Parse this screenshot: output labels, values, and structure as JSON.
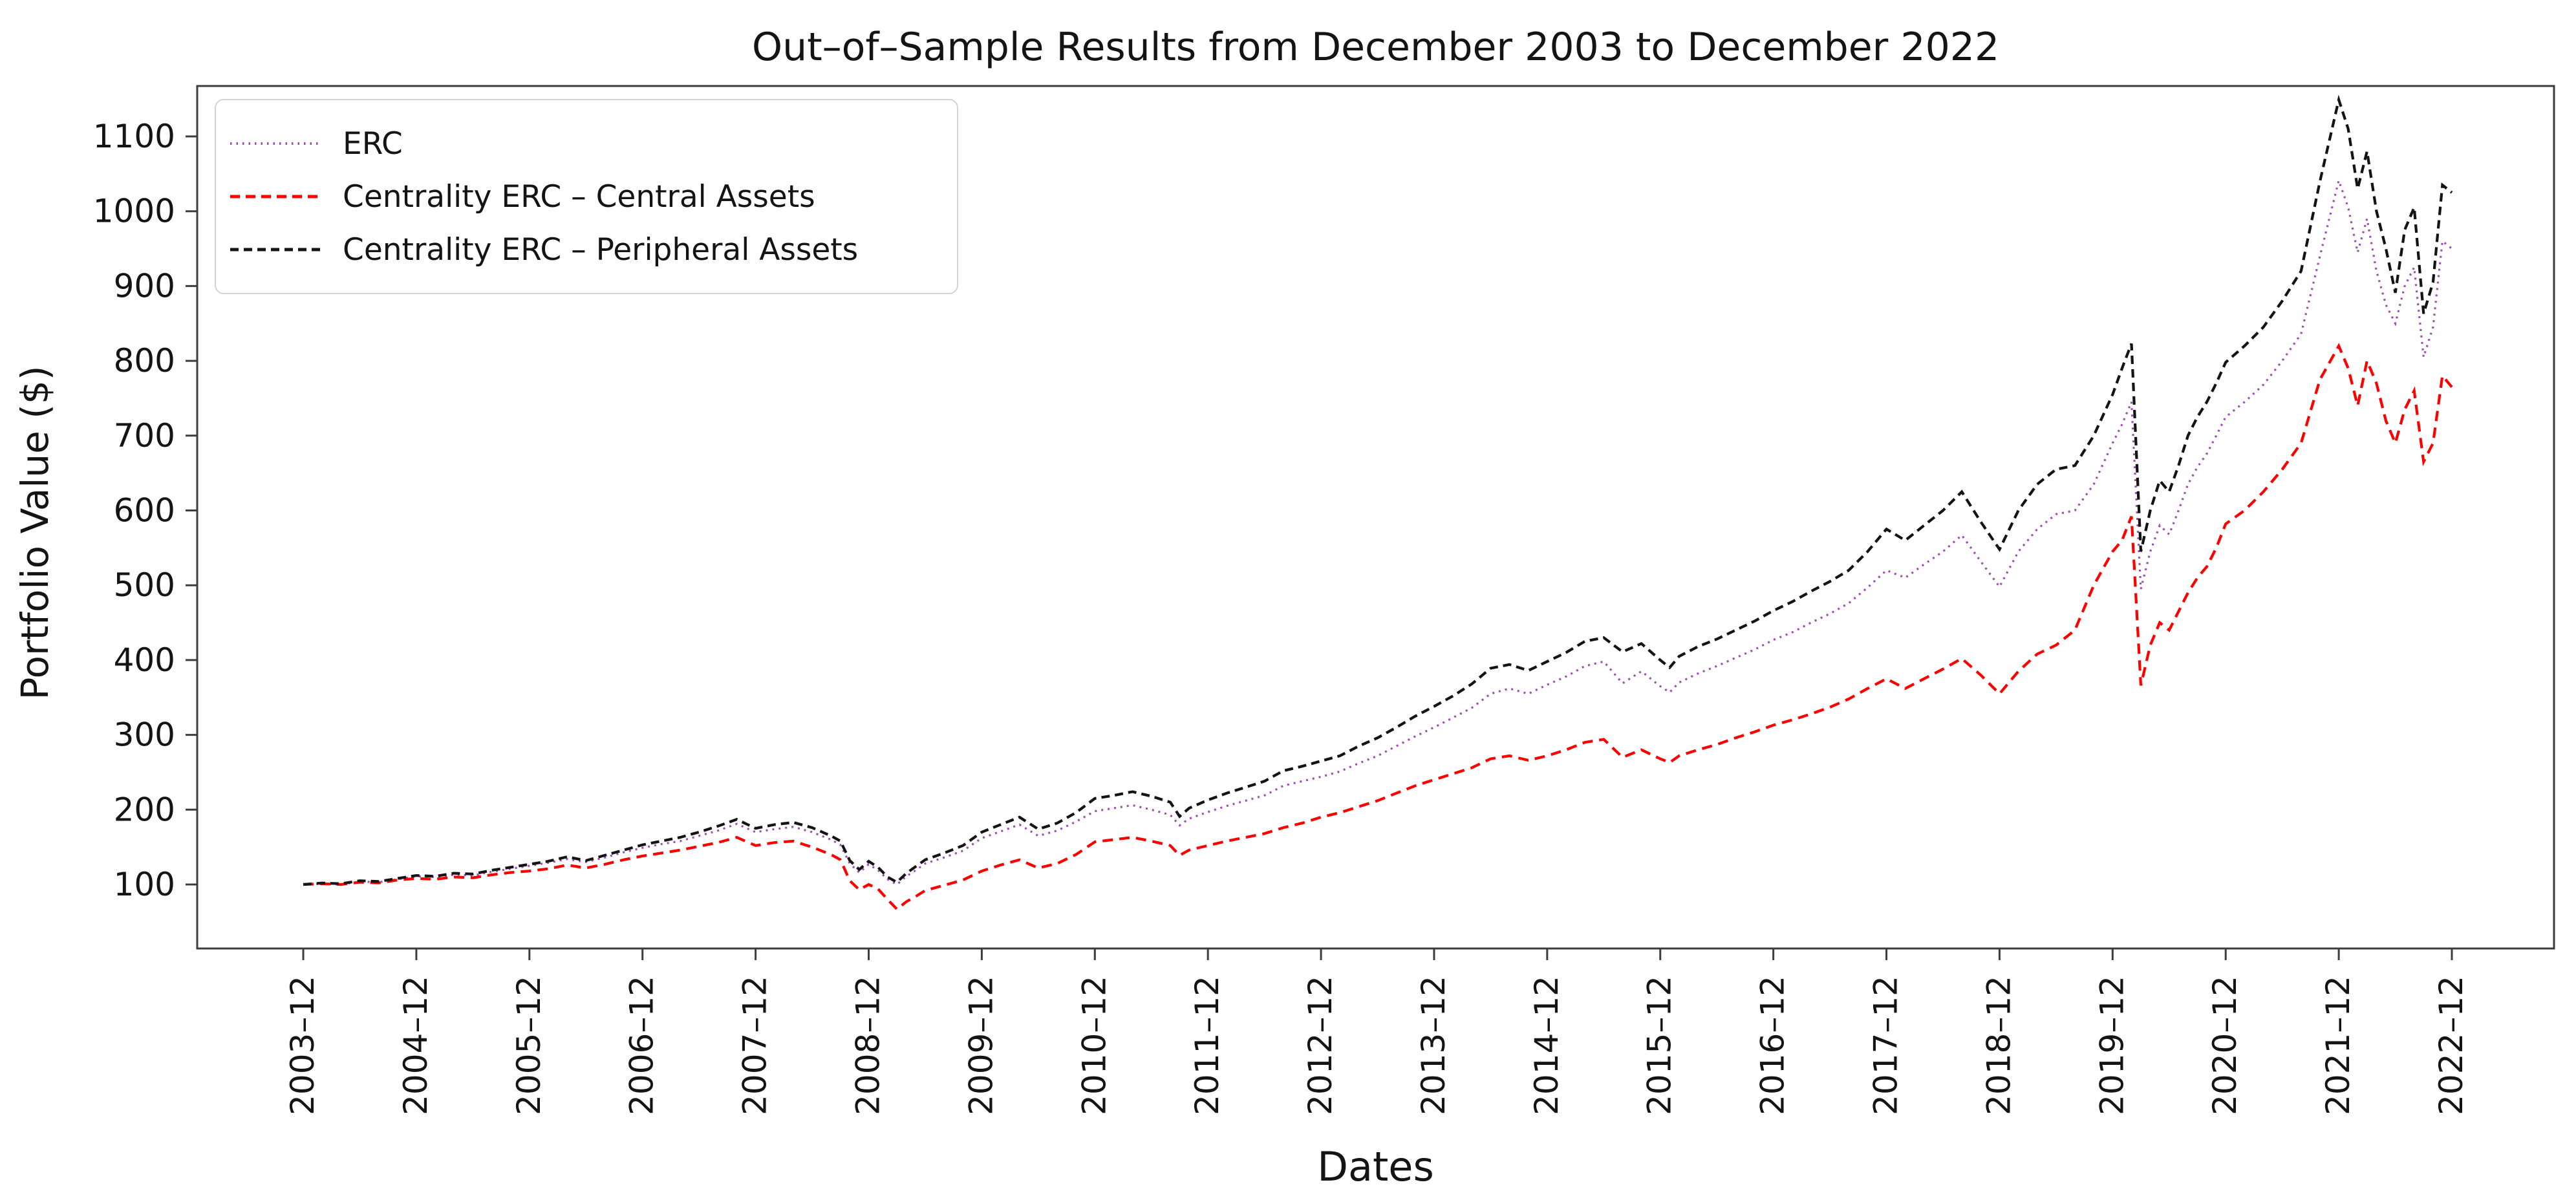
{
  "title": "Out–of–Sample Results from December 2003 to December 2022",
  "x_axis": {
    "label": "Dates",
    "ticks": [
      "2003–12",
      "2004–12",
      "2005–12",
      "2006–12",
      "2007–12",
      "2008–12",
      "2009–12",
      "2010–12",
      "2011–12",
      "2012–12",
      "2013–12",
      "2014–12",
      "2015–12",
      "2016–12",
      "2017–12",
      "2018–12",
      "2019–12",
      "2020–12",
      "2021–12",
      "2022–12"
    ],
    "tick_months": [
      0,
      12,
      24,
      36,
      48,
      60,
      72,
      84,
      96,
      108,
      120,
      132,
      144,
      156,
      168,
      180,
      192,
      204,
      216,
      228
    ]
  },
  "y_axis": {
    "label": "Portfolio Value ($)",
    "ticks": [
      100,
      200,
      300,
      400,
      500,
      600,
      700,
      800,
      900,
      1000,
      1100
    ]
  },
  "legend": {
    "items": [
      {
        "id": "erc",
        "label": "ERC",
        "color": "#A04DB5",
        "dash": "2.5 7",
        "width": 4
      },
      {
        "id": "central",
        "label": "Centrality ERC – Central Assets",
        "color": "#FF0000",
        "dash": "15 9",
        "width": 5
      },
      {
        "id": "peripheral",
        "label": "Centrality ERC – Peripheral Assets",
        "color": "#141414",
        "dash": "13 8",
        "width": 5
      }
    ]
  },
  "chart_data": {
    "type": "line",
    "title": "Out–of–Sample Results from December 2003 to December 2022",
    "xlabel": "Dates",
    "ylabel": "Portfolio Value ($)",
    "grid": false,
    "legend_position": "upper left",
    "x_unit": "months since 2003-12",
    "x_range_months": [
      0,
      228
    ],
    "ylim": [
      14,
      1168
    ],
    "x": [
      0,
      2,
      4,
      6,
      8,
      10,
      12,
      14,
      16,
      18,
      20,
      22,
      24,
      26,
      28,
      30,
      32,
      34,
      36,
      38,
      40,
      42,
      44,
      46,
      48,
      50,
      52,
      54,
      56,
      57,
      58,
      59,
      60,
      61,
      62,
      63,
      64,
      65,
      66,
      68,
      70,
      72,
      74,
      76,
      78,
      80,
      82,
      84,
      86,
      88,
      90,
      92,
      93,
      94,
      96,
      98,
      100,
      102,
      104,
      106,
      108,
      110,
      112,
      114,
      116,
      118,
      120,
      122,
      124,
      126,
      128,
      130,
      132,
      134,
      136,
      138,
      140,
      142,
      144,
      145,
      146,
      148,
      150,
      152,
      154,
      156,
      158,
      160,
      162,
      164,
      166,
      168,
      170,
      172,
      174,
      176,
      178,
      180,
      182,
      184,
      186,
      188,
      190,
      192,
      193,
      194,
      195,
      196,
      197,
      198,
      199,
      200,
      201,
      202,
      203,
      204,
      206,
      208,
      210,
      212,
      214,
      216,
      217,
      218,
      219,
      220,
      221,
      222,
      223,
      224,
      225,
      226,
      227,
      228
    ],
    "series": [
      {
        "name": "ERC",
        "color": "#A04DB5",
        "linestyle": "dotted",
        "stroke_width": 3.2,
        "dash": "3 7",
        "values": [
          100,
          101,
          100,
          104,
          103,
          107,
          111,
          110,
          113,
          112,
          117,
          121,
          125,
          129,
          134,
          130,
          136,
          143,
          149,
          154,
          158,
          165,
          172,
          181,
          170,
          174,
          177,
          170,
          160,
          153,
          128,
          116,
          127,
          119,
          107,
          100,
          111,
          119,
          128,
          136,
          145,
          162,
          171,
          180,
          165,
          172,
          184,
          198,
          202,
          206,
          200,
          193,
          179,
          188,
          197,
          205,
          212,
          219,
          232,
          238,
          244,
          251,
          262,
          272,
          285,
          298,
          310,
          323,
          336,
          355,
          362,
          355,
          367,
          378,
          392,
          398,
          369,
          385,
          365,
          357,
          370,
          382,
          392,
          403,
          414,
          427,
          437,
          450,
          462,
          476,
          497,
          520,
          510,
          528,
          545,
          567,
          532,
          498,
          545,
          575,
          595,
          600,
          635,
          690,
          715,
          745,
          495,
          545,
          580,
          568,
          600,
          635,
          658,
          676,
          700,
          725,
          745,
          768,
          800,
          836,
          940,
          1041,
          1005,
          945,
          990,
          920,
          875,
          850,
          900,
          925,
          805,
          845,
          960,
          950
        ]
      },
      {
        "name": "Centrality ERC – Central Assets",
        "color": "#FF0000",
        "linestyle": "dashed",
        "stroke_width": 4.2,
        "dash": "16 10",
        "values": [
          100,
          101,
          100,
          103,
          102,
          106,
          108,
          107,
          110,
          109,
          113,
          116,
          118,
          121,
          126,
          122,
          127,
          133,
          138,
          142,
          146,
          151,
          156,
          163,
          152,
          156,
          158,
          150,
          140,
          133,
          105,
          93,
          100,
          94,
          80,
          67,
          77,
          84,
          92,
          99,
          106,
          118,
          126,
          133,
          122,
          128,
          140,
          157,
          160,
          163,
          158,
          152,
          139,
          146,
          152,
          158,
          163,
          168,
          176,
          182,
          190,
          196,
          204,
          212,
          222,
          232,
          240,
          248,
          256,
          268,
          272,
          266,
          272,
          280,
          290,
          294,
          270,
          280,
          268,
          263,
          272,
          280,
          287,
          296,
          304,
          313,
          320,
          328,
          337,
          348,
          362,
          375,
          362,
          375,
          388,
          402,
          380,
          355,
          385,
          408,
          420,
          440,
          500,
          545,
          560,
          592,
          366,
          420,
          450,
          440,
          465,
          490,
          510,
          525,
          550,
          582,
          600,
          625,
          655,
          690,
          775,
          820,
          790,
          740,
          800,
          770,
          720,
          690,
          735,
          760,
          665,
          690,
          780,
          765
        ]
      },
      {
        "name": "Centrality ERC – Peripheral Assets",
        "color": "#141414",
        "linestyle": "densely dashed",
        "stroke_width": 4.2,
        "dash": "13 8",
        "values": [
          100,
          102,
          101,
          105,
          104,
          108,
          112,
          111,
          115,
          114,
          119,
          123,
          127,
          131,
          137,
          132,
          139,
          146,
          153,
          158,
          163,
          170,
          178,
          187,
          175,
          180,
          183,
          176,
          165,
          158,
          132,
          120,
          131,
          123,
          110,
          103,
          115,
          124,
          133,
          142,
          152,
          170,
          180,
          190,
          174,
          182,
          196,
          215,
          219,
          224,
          218,
          210,
          191,
          202,
          213,
          222,
          230,
          238,
          252,
          258,
          265,
          272,
          285,
          296,
          310,
          325,
          338,
          352,
          368,
          389,
          394,
          386,
          398,
          410,
          425,
          430,
          411,
          422,
          400,
          390,
          405,
          418,
          428,
          440,
          452,
          466,
          478,
          492,
          505,
          520,
          545,
          575,
          560,
          580,
          600,
          625,
          585,
          548,
          600,
          635,
          655,
          660,
          700,
          755,
          790,
          823,
          545,
          600,
          640,
          625,
          660,
          700,
          725,
          745,
          770,
          798,
          820,
          845,
          880,
          920,
          1040,
          1149,
          1110,
          1030,
          1080,
          1000,
          950,
          891,
          975,
          1005,
          863,
          905,
          1035,
          1025
        ]
      }
    ]
  }
}
